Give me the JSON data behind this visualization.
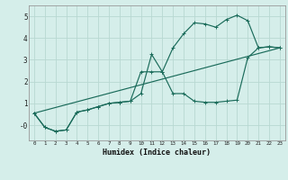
{
  "xlabel": "Humidex (Indice chaleur)",
  "bg_color": "#d5eeea",
  "grid_color": "#b8d8d2",
  "line_color": "#1a6b5a",
  "xlim": [
    -0.5,
    23.5
  ],
  "ylim": [
    -0.7,
    5.5
  ],
  "yticks": [
    0,
    1,
    2,
    3,
    4,
    5
  ],
  "ytick_labels": [
    "-0",
    "1",
    "2",
    "3",
    "4",
    "5"
  ],
  "xticks": [
    0,
    1,
    2,
    3,
    4,
    5,
    6,
    7,
    8,
    9,
    10,
    11,
    12,
    13,
    14,
    15,
    16,
    17,
    18,
    19,
    20,
    21,
    22,
    23
  ],
  "line1_x": [
    0,
    1,
    2,
    3,
    4,
    5,
    6,
    7,
    8,
    9,
    10,
    11,
    12,
    13,
    14,
    15,
    16,
    17,
    18,
    19,
    20,
    21,
    22,
    23
  ],
  "line1_y": [
    0.55,
    -0.1,
    -0.28,
    -0.22,
    0.6,
    0.7,
    0.85,
    1.0,
    1.05,
    1.1,
    1.45,
    3.25,
    2.45,
    3.55,
    4.2,
    4.7,
    4.65,
    4.5,
    4.85,
    5.05,
    4.8,
    3.55,
    3.6,
    3.55
  ],
  "line2_x": [
    0,
    1,
    2,
    3,
    4,
    5,
    6,
    7,
    8,
    9,
    10,
    11,
    12,
    13,
    14,
    15,
    16,
    17,
    18,
    19,
    20,
    21,
    22,
    23
  ],
  "line2_y": [
    0.55,
    -0.1,
    -0.28,
    -0.22,
    0.6,
    0.7,
    0.85,
    1.0,
    1.05,
    1.1,
    2.45,
    2.45,
    2.45,
    1.45,
    1.45,
    1.1,
    1.05,
    1.05,
    1.1,
    1.15,
    3.1,
    3.55,
    3.6,
    3.55
  ],
  "line3_x": [
    0,
    23
  ],
  "line3_y": [
    0.55,
    3.55
  ]
}
